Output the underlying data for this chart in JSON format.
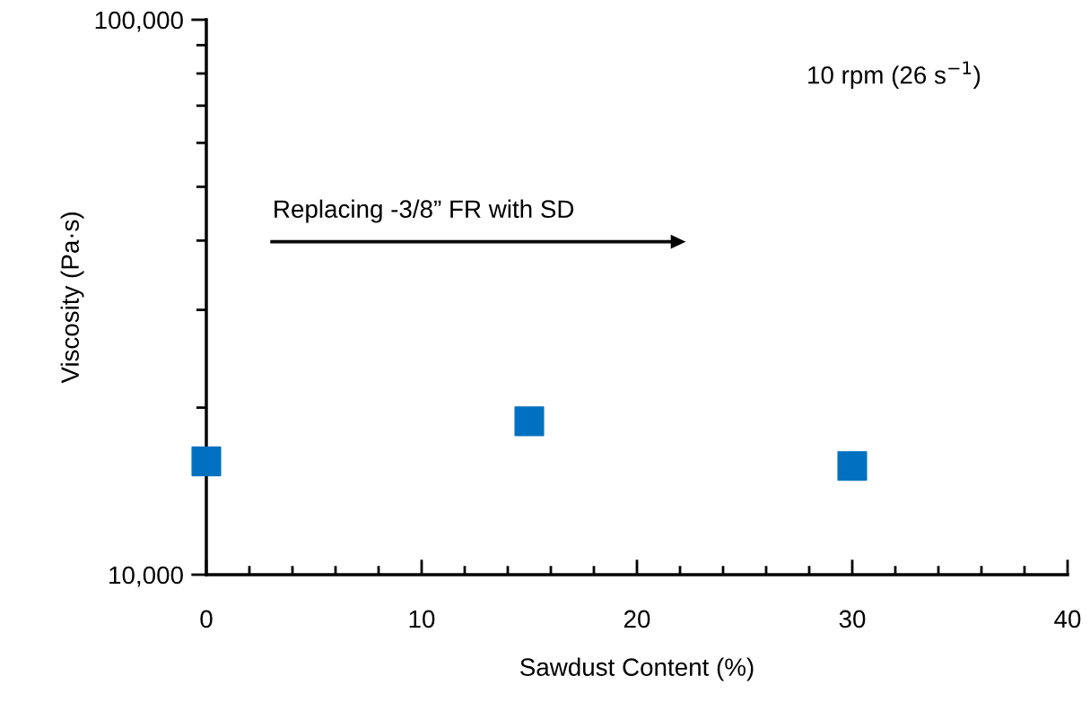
{
  "chart_data": {
    "type": "scatter",
    "xlabel": "Sawdust Content (%)",
    "ylabel": "Viscosity (Pa·s)",
    "x": [
      0,
      15,
      30
    ],
    "series": [
      {
        "color": "#0070c0",
        "values": [
          16000,
          18900,
          15700
        ]
      }
    ],
    "marker": "square",
    "log": "y",
    "grid": false,
    "legend": false,
    "xlim": [
      0,
      40
    ],
    "ylim": [
      10000,
      100000
    ],
    "xticks": [
      0,
      {
        "value": 2,
        "label": null
      },
      {
        "value": 4,
        "label": null
      },
      {
        "value": 6,
        "label": null
      },
      {
        "value": 8,
        "label": null
      },
      10,
      {
        "value": 12,
        "label": null
      },
      {
        "value": 14,
        "label": null
      },
      {
        "value": 16,
        "label": null
      },
      {
        "value": 18,
        "label": null
      },
      20,
      {
        "value": 22,
        "label": null
      },
      {
        "value": 24,
        "label": null
      },
      {
        "value": 26,
        "label": null
      },
      {
        "value": 28,
        "label": null
      },
      30,
      {
        "value": 32,
        "label": null
      },
      {
        "value": 34,
        "label": null
      },
      {
        "value": 36,
        "label": null
      },
      {
        "value": 38,
        "label": null
      },
      40
    ],
    "yticks": [
      {
        "value": 10000,
        "label": "10,000"
      },
      {
        "value": 20000,
        "label": null
      },
      {
        "value": 30000,
        "label": null
      },
      {
        "value": 40000,
        "label": null
      },
      {
        "value": 50000,
        "label": null
      },
      {
        "value": 60000,
        "label": null
      },
      {
        "value": 70000,
        "label": null
      },
      {
        "value": 80000,
        "label": null
      },
      {
        "value": 90000,
        "label": null
      },
      {
        "value": 100000,
        "label": "100,000"
      }
    ],
    "annotations": [
      "10 rpm (26 s$^{−1}$)",
      "Replacing -3/8” FR with SD"
    ]
  }
}
